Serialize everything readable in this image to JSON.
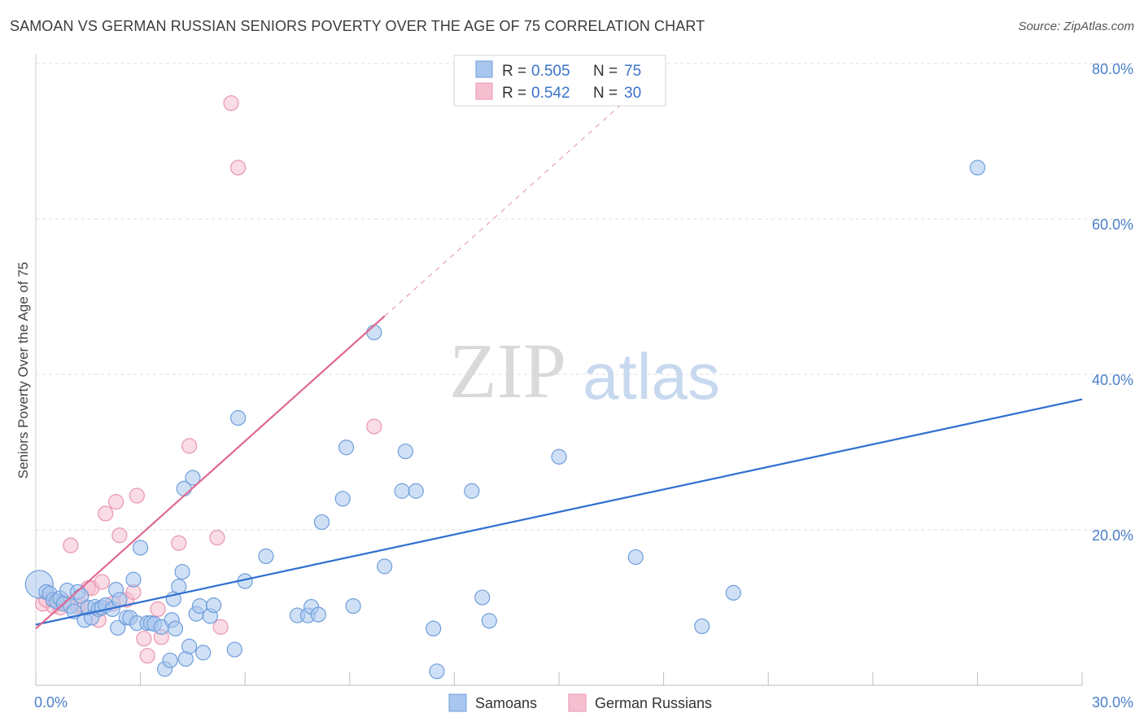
{
  "title": "SAMOAN VS GERMAN RUSSIAN SENIORS POVERTY OVER THE AGE OF 75 CORRELATION CHART",
  "source": "Source: ZipAtlas.com",
  "watermark": {
    "zip": "ZIP",
    "atlas": "atlas"
  },
  "colors": {
    "samoans_fill": "#a8c6ee",
    "samoans_stroke": "#6f9edb",
    "samoans_line": "#2f6fd0",
    "german_fill": "#f6bfd0",
    "german_stroke": "#e994b1",
    "german_line": "#e06892",
    "tick_text": "#4a7fc8",
    "grid": "#dddddd"
  },
  "legend": {
    "rows": [
      {
        "r_label": "R =",
        "r_value": "0.505",
        "n_label": "N =",
        "n_value": "75"
      },
      {
        "r_label": "R =",
        "r_value": "0.542",
        "n_label": "N =",
        "n_value": "30"
      }
    ]
  },
  "chart_data": {
    "type": "scatter",
    "xlabel": "",
    "ylabel": "Seniors Poverty Over the Age of 75",
    "xlim": [
      0,
      30
    ],
    "ylim": [
      0,
      80
    ],
    "x_tick_labels": [
      "0.0%",
      "30.0%"
    ],
    "y_ticks": [
      20,
      40,
      60,
      80
    ],
    "y_tick_labels": [
      "20.0%",
      "40.0%",
      "60.0%",
      "80.0%"
    ],
    "grid": true,
    "legend_position": "top-center",
    "series": [
      {
        "name": "Samoans",
        "points": [
          [
            0.1,
            13.0
          ],
          [
            0.3,
            12.0
          ],
          [
            0.4,
            11.8
          ],
          [
            0.5,
            11.0
          ],
          [
            0.6,
            10.8
          ],
          [
            0.7,
            11.2
          ],
          [
            0.8,
            10.5
          ],
          [
            0.9,
            12.2
          ],
          [
            1.0,
            10.2
          ],
          [
            1.1,
            9.5
          ],
          [
            1.2,
            12.0
          ],
          [
            1.3,
            11.5
          ],
          [
            1.4,
            8.4
          ],
          [
            1.5,
            10.0
          ],
          [
            1.6,
            8.7
          ],
          [
            1.7,
            10.1
          ],
          [
            1.8,
            9.8
          ],
          [
            1.9,
            10.0
          ],
          [
            2.0,
            10.3
          ],
          [
            2.2,
            9.8
          ],
          [
            2.3,
            12.3
          ],
          [
            2.35,
            7.4
          ],
          [
            2.4,
            11.0
          ],
          [
            2.6,
            8.7
          ],
          [
            2.7,
            8.7
          ],
          [
            2.8,
            13.6
          ],
          [
            2.9,
            8.0
          ],
          [
            3.0,
            17.7
          ],
          [
            3.2,
            8.0
          ],
          [
            3.3,
            8.0
          ],
          [
            3.4,
            7.9
          ],
          [
            3.6,
            7.5
          ],
          [
            3.7,
            2.1
          ],
          [
            3.85,
            3.2
          ],
          [
            3.9,
            8.4
          ],
          [
            3.95,
            11.1
          ],
          [
            4.0,
            7.3
          ],
          [
            4.1,
            12.7
          ],
          [
            4.2,
            14.6
          ],
          [
            4.25,
            25.3
          ],
          [
            4.3,
            3.4
          ],
          [
            4.4,
            5.0
          ],
          [
            4.5,
            26.7
          ],
          [
            4.6,
            9.2
          ],
          [
            4.7,
            10.2
          ],
          [
            4.8,
            4.2
          ],
          [
            5.0,
            8.9
          ],
          [
            5.1,
            10.3
          ],
          [
            5.7,
            4.6
          ],
          [
            5.8,
            34.4
          ],
          [
            6.0,
            13.4
          ],
          [
            6.6,
            16.6
          ],
          [
            7.5,
            9.0
          ],
          [
            7.8,
            9.0
          ],
          [
            7.9,
            10.1
          ],
          [
            8.1,
            9.1
          ],
          [
            8.2,
            21.0
          ],
          [
            8.8,
            24.0
          ],
          [
            8.9,
            30.6
          ],
          [
            9.1,
            10.2
          ],
          [
            9.7,
            45.4
          ],
          [
            10.0,
            15.3
          ],
          [
            10.5,
            25.0
          ],
          [
            10.6,
            30.1
          ],
          [
            10.9,
            25.0
          ],
          [
            11.4,
            7.3
          ],
          [
            11.5,
            1.8
          ],
          [
            12.5,
            25.0
          ],
          [
            12.8,
            11.3
          ],
          [
            13.0,
            8.3
          ],
          [
            15.0,
            29.4
          ],
          [
            17.2,
            16.5
          ],
          [
            19.1,
            7.6
          ],
          [
            20.0,
            11.9
          ],
          [
            27.0,
            66.6
          ]
        ],
        "fit_line": {
          "x": [
            0,
            30
          ],
          "y": [
            7.8,
            36.8
          ]
        }
      },
      {
        "name": "German Russians",
        "points": [
          [
            0.2,
            10.5
          ],
          [
            0.5,
            10.2
          ],
          [
            0.7,
            10.0
          ],
          [
            0.8,
            10.8
          ],
          [
            1.0,
            18.0
          ],
          [
            1.2,
            10.2
          ],
          [
            1.5,
            12.5
          ],
          [
            1.6,
            12.5
          ],
          [
            1.8,
            8.4
          ],
          [
            1.9,
            13.3
          ],
          [
            2.0,
            22.1
          ],
          [
            2.2,
            10.5
          ],
          [
            2.3,
            23.6
          ],
          [
            2.4,
            19.3
          ],
          [
            2.6,
            11.0
          ],
          [
            2.8,
            12.0
          ],
          [
            2.9,
            24.4
          ],
          [
            3.1,
            6.0
          ],
          [
            3.2,
            3.8
          ],
          [
            3.5,
            9.8
          ],
          [
            3.6,
            6.2
          ],
          [
            4.1,
            18.3
          ],
          [
            4.4,
            30.8
          ],
          [
            5.2,
            19.0
          ],
          [
            5.3,
            7.5
          ],
          [
            5.6,
            74.9
          ],
          [
            5.8,
            66.6
          ],
          [
            9.7,
            33.3
          ],
          [
            0.3,
            11.0
          ],
          [
            1.3,
            10.4
          ]
        ],
        "fit_line": {
          "x": [
            0,
            10
          ],
          "y": [
            7.3,
            47.5
          ]
        },
        "fit_line_extended": {
          "x": [
            10,
            17.5
          ],
          "y": [
            47.5,
            77.6
          ]
        }
      }
    ]
  },
  "bottom_legend": [
    "Samoans",
    "German Russians"
  ]
}
